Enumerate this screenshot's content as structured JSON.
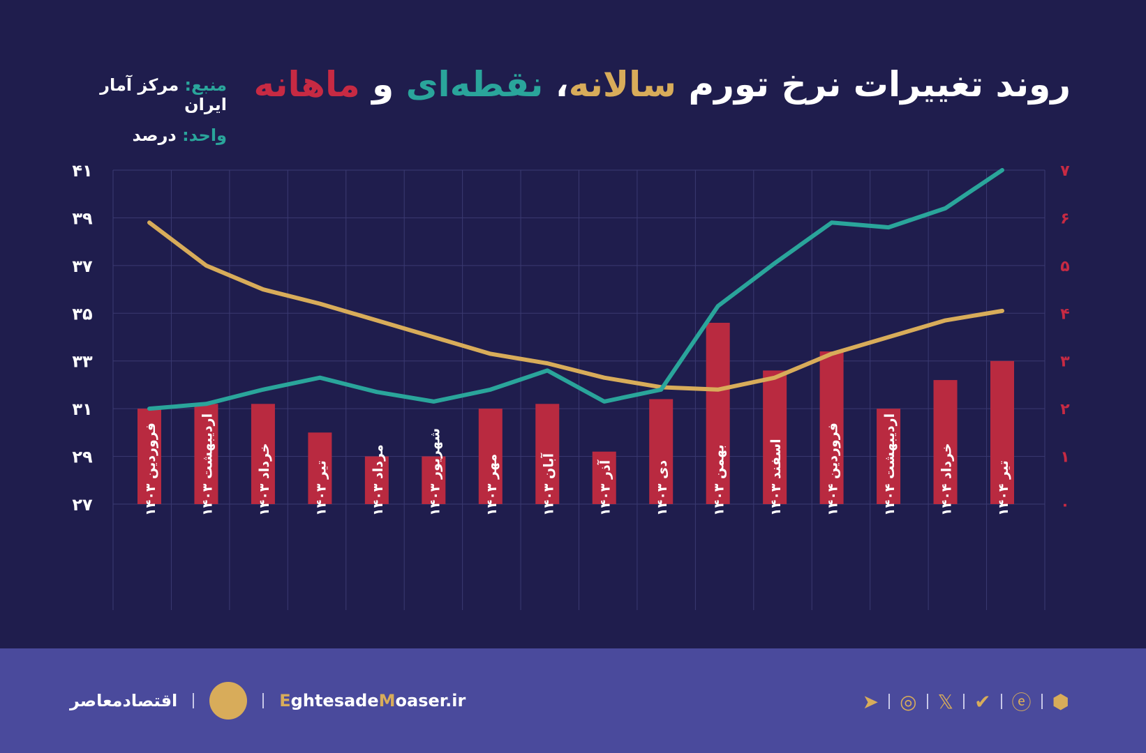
{
  "title": {
    "part1": "روند تغییرات نرخ تورم ",
    "annual": "سالانه",
    "comma": "، ",
    "p2p": "نقطه‌ای",
    "and": " و ",
    "monthly": "ماهانه"
  },
  "meta": {
    "source_label": "منبع:",
    "source": " مرکز آمار ایران",
    "unit_label": "واحد:",
    "unit": " درصد"
  },
  "footer": {
    "brand_fa": "اقتصادمعاصر",
    "site_e": "E",
    "site_1": "ghtesade",
    "site_m": "M",
    "site_2": "oaser.ir"
  },
  "colors": {
    "annual": "#d8ac5a",
    "p2p": "#2aa59b",
    "monthly": "#b92a40",
    "bg": "#1f1d4d",
    "footer": "#4a4a9c"
  },
  "icons": [
    "telegram-icon",
    "instagram-icon",
    "x-icon",
    "bale-icon",
    "eitaa-icon",
    "rubika-icon"
  ],
  "chart_data": {
    "type": "bar+line",
    "categories": [
      "فروردین ۱۴۰۳",
      "اردیبهشت ۱۴۰۳",
      "خرداد ۱۴۰۳",
      "تیر ۱۴۰۳",
      "مرداد ۱۴۰۳",
      "شهریور ۱۴۰۳",
      "مهر ۱۴۰۳",
      "آبان ۱۴۰۳",
      "آذر ۱۴۰۳",
      "دی ۱۴۰۳",
      "بهمن ۱۴۰۳",
      "اسفند ۱۴۰۳",
      "فروردین ۱۴۰۴",
      "اردیبهشت ۱۴۰۴",
      "خرداد ۱۴۰۴",
      "تیر ۱۴۰۴"
    ],
    "series": [
      {
        "name": "سالانه",
        "type": "line",
        "axis": "left",
        "values": [
          38.8,
          37.0,
          36.0,
          35.4,
          34.7,
          34.0,
          33.3,
          32.9,
          32.3,
          31.9,
          31.8,
          32.3,
          33.3,
          34.0,
          34.7,
          35.1
        ]
      },
      {
        "name": "نقطه‌ای",
        "type": "line",
        "axis": "left",
        "values": [
          31.0,
          31.2,
          31.8,
          32.3,
          31.7,
          31.3,
          31.8,
          32.6,
          31.3,
          31.8,
          35.3,
          37.1,
          38.8,
          38.6,
          39.4,
          41.0
        ]
      },
      {
        "name": "ماهانه",
        "type": "bar",
        "axis": "right",
        "values": [
          2.0,
          2.1,
          2.1,
          1.5,
          1.0,
          1.0,
          2.0,
          2.1,
          1.1,
          2.2,
          3.8,
          2.8,
          3.2,
          2.0,
          2.6,
          3.0
        ]
      }
    ],
    "left_ylim": [
      27,
      41
    ],
    "left_ticks": [
      "۲۷",
      "۲۹",
      "۳۱",
      "۳۳",
      "۳۵",
      "۳۷",
      "۳۹",
      "۴۱"
    ],
    "right_ylim": [
      0,
      7
    ],
    "right_ticks": [
      "۰",
      "۱",
      "۲",
      "۳",
      "۴",
      "۵",
      "۶",
      "۷"
    ],
    "grid": true
  }
}
